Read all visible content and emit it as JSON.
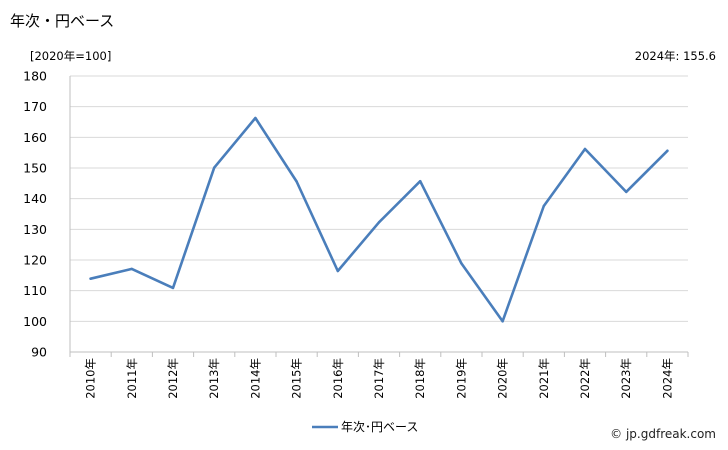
{
  "header": {
    "title": "年次・円ベース",
    "unit": "[2020年=100]",
    "latest": "2024年: 155.6"
  },
  "footer": {
    "credit": "© jp.gdfreak.com"
  },
  "colors": {
    "series": "#4a7ebb",
    "grid": "#d9d9d9",
    "axis": "#bfbfbf"
  },
  "chart_data": {
    "type": "line",
    "title": "年次・円ベース",
    "ylabel": "[2020年=100]",
    "xlabel": "",
    "ylim": [
      90,
      180
    ],
    "yticks": [
      90,
      100,
      110,
      120,
      130,
      140,
      150,
      160,
      170,
      180
    ],
    "grid": true,
    "legend": "bottom",
    "categories": [
      "2010年",
      "2011年",
      "2012年",
      "2013年",
      "2014年",
      "2015年",
      "2016年",
      "2017年",
      "2018年",
      "2019年",
      "2020年",
      "2021年",
      "2022年",
      "2023年",
      "2024年"
    ],
    "series": [
      {
        "name": "年次･円ベース",
        "values": [
          113.9,
          117.1,
          110.9,
          150.1,
          166.3,
          145.6,
          116.4,
          132.3,
          145.7,
          118.9,
          100.0,
          137.6,
          156.2,
          142.2,
          155.6
        ]
      }
    ]
  }
}
